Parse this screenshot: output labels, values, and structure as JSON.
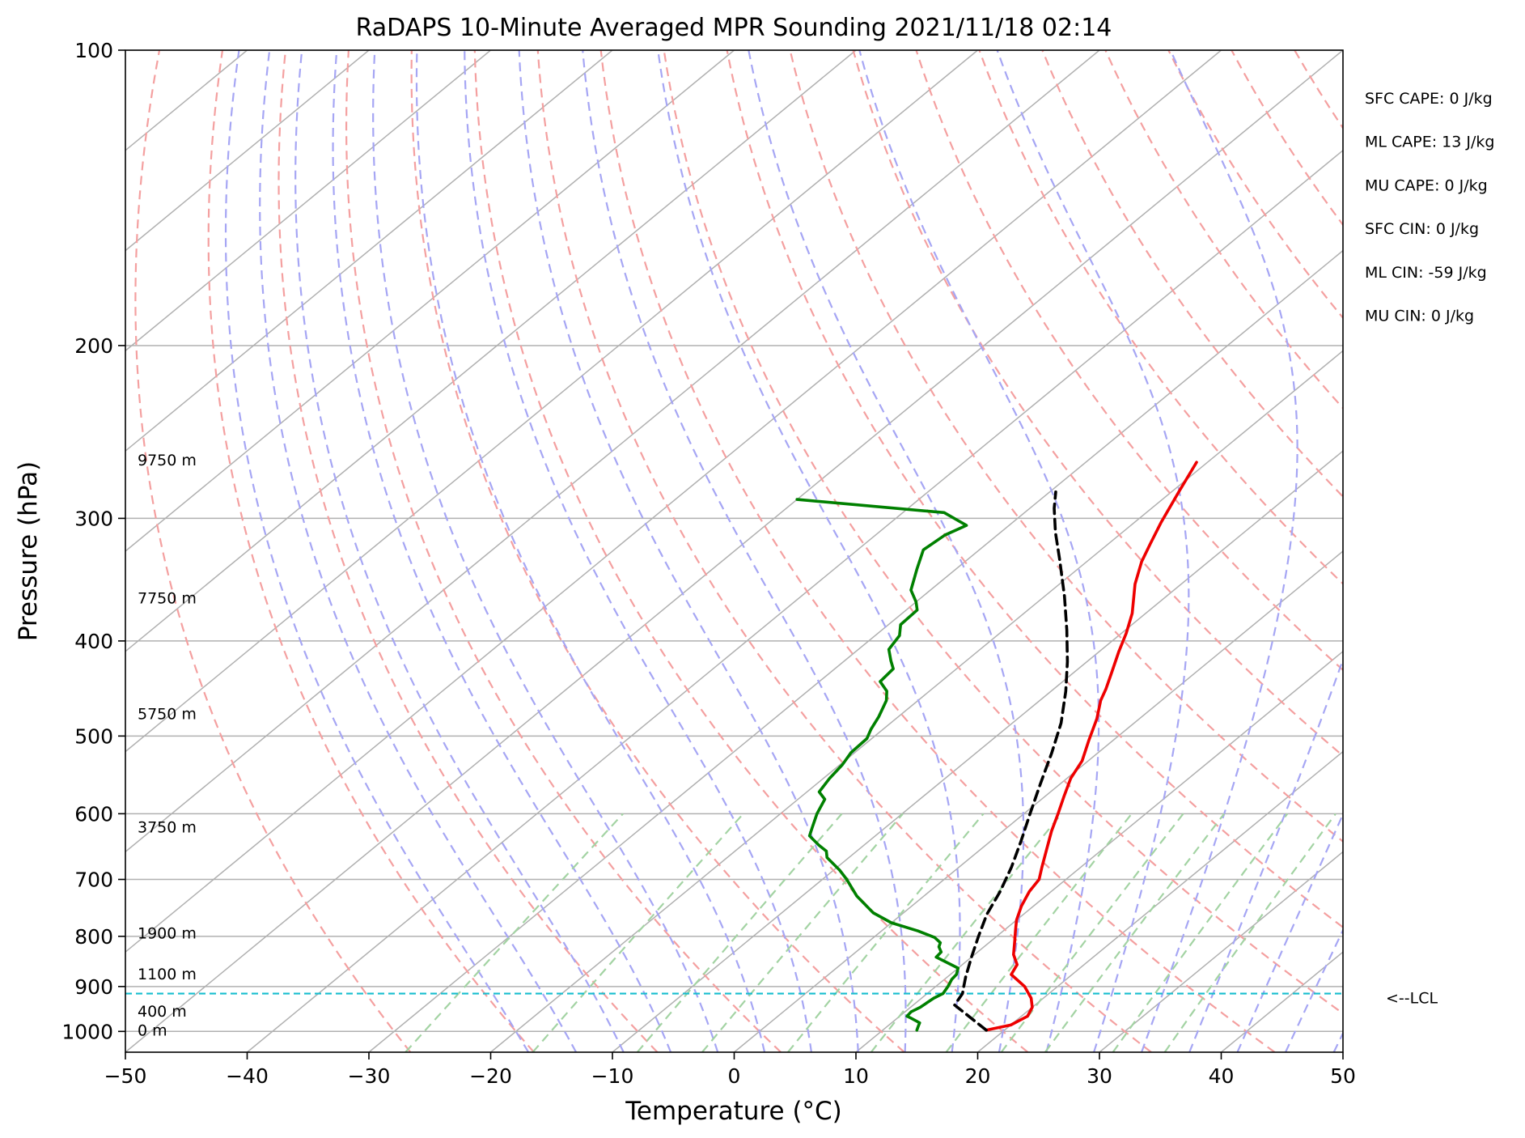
{
  "chart_data": {
    "type": "line",
    "title": "RaDAPS 10-Minute Averaged MPR Sounding 2021/11/18 02:14",
    "xlabel": "Temperature (°C)",
    "ylabel": "Pressure (hPa)",
    "xlim": [
      -50,
      50
    ],
    "ylim": [
      1050,
      100
    ],
    "y_scale": "log",
    "x_ticks": [
      -50,
      -40,
      -30,
      -20,
      -10,
      0,
      10,
      20,
      30,
      40,
      50
    ],
    "x_tick_labels": [
      "−50",
      "−40",
      "−30",
      "−20",
      "−10",
      "0",
      "10",
      "20",
      "30",
      "40",
      "50"
    ],
    "y_ticks": [
      1000,
      900,
      800,
      700,
      600,
      500,
      400,
      300,
      200,
      100
    ],
    "y_tick_labels": [
      "1000",
      "900",
      "800",
      "700",
      "600",
      "500",
      "400",
      "300",
      "200",
      "100"
    ],
    "grid": true,
    "series": [
      {
        "role": "temperature",
        "color": "#ee0000",
        "points": [
          [
            18.5,
            997
          ],
          [
            20.0,
            985
          ],
          [
            20.5,
            965
          ],
          [
            20.0,
            945
          ],
          [
            19.0,
            925
          ],
          [
            17.3,
            900
          ],
          [
            15.0,
            875
          ],
          [
            14.5,
            855
          ],
          [
            13.2,
            835
          ],
          [
            12.0,
            810
          ],
          [
            11.0,
            790
          ],
          [
            10.0,
            770
          ],
          [
            9.0,
            745
          ],
          [
            8.2,
            720
          ],
          [
            7.8,
            700
          ],
          [
            6.8,
            680
          ],
          [
            5.3,
            650
          ],
          [
            4.0,
            625
          ],
          [
            2.8,
            600
          ],
          [
            1.5,
            575
          ],
          [
            0.3,
            552
          ],
          [
            -0.5,
            530
          ],
          [
            -2.0,
            505
          ],
          [
            -3.5,
            480
          ],
          [
            -5.0,
            460
          ],
          [
            -5.7,
            448
          ],
          [
            -6.8,
            432
          ],
          [
            -8.4,
            410
          ],
          [
            -9.6,
            393
          ],
          [
            -11.1,
            375
          ],
          [
            -13.8,
            350
          ],
          [
            -15.5,
            332
          ],
          [
            -16.6,
            318
          ],
          [
            -17.8,
            303
          ],
          [
            -19.4,
            282
          ],
          [
            -20.9,
            263
          ]
        ]
      },
      {
        "role": "dewpoint",
        "color": "#008000",
        "points": [
          [
            12.8,
            997
          ],
          [
            12.5,
            987
          ],
          [
            12.3,
            980
          ],
          [
            11.2,
            970
          ],
          [
            10.6,
            965
          ],
          [
            10.5,
            955
          ],
          [
            10.8,
            945
          ],
          [
            10.9,
            935
          ],
          [
            11.0,
            925
          ],
          [
            11.3,
            915
          ],
          [
            11.0,
            900
          ],
          [
            10.6,
            885
          ],
          [
            10.5,
            875
          ],
          [
            10.0,
            862
          ],
          [
            7.1,
            840
          ],
          [
            7.0,
            830
          ],
          [
            6.3,
            820
          ],
          [
            6.0,
            812
          ],
          [
            5.0,
            802
          ],
          [
            3.0,
            790
          ],
          [
            0.0,
            775
          ],
          [
            -2.5,
            757
          ],
          [
            -5.5,
            728
          ],
          [
            -8.0,
            700
          ],
          [
            -9.5,
            685
          ],
          [
            -11.8,
            665
          ],
          [
            -12.5,
            655
          ],
          [
            -13.7,
            646
          ],
          [
            -15.4,
            632
          ],
          [
            -16.0,
            620
          ],
          [
            -17.0,
            600
          ],
          [
            -17.8,
            580
          ],
          [
            -19.0,
            570
          ],
          [
            -19.5,
            552
          ],
          [
            -19.8,
            535
          ],
          [
            -20.3,
            520
          ],
          [
            -20.4,
            503
          ],
          [
            -21.0,
            492
          ],
          [
            -21.6,
            478
          ],
          [
            -22.6,
            460
          ],
          [
            -23.5,
            450
          ],
          [
            -25.0,
            440
          ],
          [
            -25.2,
            427
          ],
          [
            -26.2,
            419
          ],
          [
            -27.5,
            408
          ],
          [
            -28.0,
            395
          ],
          [
            -29.0,
            385
          ],
          [
            -29.1,
            372
          ],
          [
            -30.0,
            365
          ],
          [
            -31.6,
            355
          ],
          [
            -33.2,
            338
          ],
          [
            -34.6,
            323
          ],
          [
            -34.3,
            312
          ],
          [
            -33.5,
            305
          ],
          [
            -36.6,
            296
          ],
          [
            -50.0,
            287
          ]
        ]
      },
      {
        "role": "parcel",
        "color": "#000000",
        "points": [
          [
            18.5,
            997
          ],
          [
            13.4,
            940
          ],
          [
            12.9,
            915
          ],
          [
            12.3,
            900
          ],
          [
            11.5,
            880
          ],
          [
            10.0,
            840
          ],
          [
            8.5,
            800
          ],
          [
            7.0,
            760
          ],
          [
            5.8,
            720
          ],
          [
            4.3,
            680
          ],
          [
            2.5,
            640
          ],
          [
            0.5,
            600
          ],
          [
            -1.6,
            560
          ],
          [
            -3.8,
            520
          ],
          [
            -6.0,
            485
          ],
          [
            -8.8,
            450
          ],
          [
            -11.6,
            420
          ],
          [
            -14.8,
            390
          ],
          [
            -18.4,
            360
          ],
          [
            -22.5,
            330
          ],
          [
            -25.5,
            310
          ],
          [
            -28.0,
            293
          ],
          [
            -29.5,
            282
          ]
        ]
      }
    ],
    "lcl_pressure": 915,
    "lcl_label": "<--LCL",
    "height_labels": [
      {
        "pressure": 998,
        "text": "0 m"
      },
      {
        "pressure": 955,
        "text": "400 m"
      },
      {
        "pressure": 875,
        "text": "1100 m"
      },
      {
        "pressure": 795,
        "text": "1900 m"
      },
      {
        "pressure": 620,
        "text": "3750 m"
      },
      {
        "pressure": 475,
        "text": "5750 m"
      },
      {
        "pressure": 362,
        "text": "7750 m"
      },
      {
        "pressure": 262,
        "text": "9750 m"
      }
    ],
    "indices": [
      "SFC CAPE: 0 J/kg",
      "ML CAPE: 13 J/kg",
      "MU CAPE: 0 J/kg",
      "SFC CIN: 0 J/kg",
      "ML CIN: -59 J/kg",
      "MU CIN: 0 J/kg"
    ],
    "colors": {
      "isotherm": "#b0b0b0",
      "dry_adiabat": "#f4a0a0",
      "moist_adiabat": "#a6a6f4",
      "mixing_ratio": "#a3d3a3",
      "lcl_line": "#17becf",
      "grid": "#b0b0b0"
    }
  }
}
